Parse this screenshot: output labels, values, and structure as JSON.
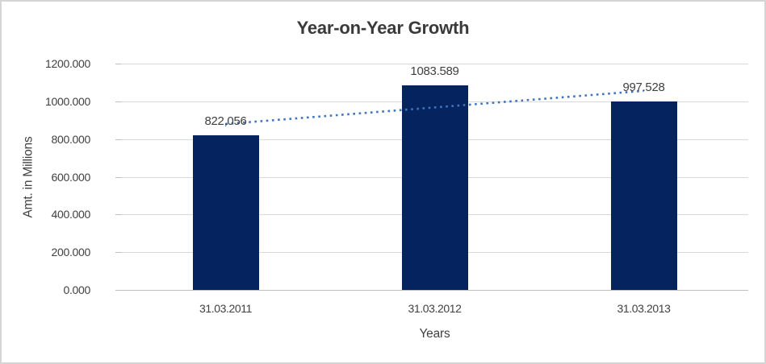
{
  "chart_data": {
    "type": "bar",
    "title": "Year-on-Year Growth",
    "xlabel": "Years",
    "ylabel": "Amt. in Millions",
    "categories": [
      "31.03.2011",
      "31.03.2012",
      "31.03.2013"
    ],
    "values": [
      822.056,
      1083.589,
      997.528
    ],
    "data_labels": [
      "822,056",
      "1083.589",
      "997.528"
    ],
    "ylim": [
      0,
      1200
    ],
    "ytick_step": 200,
    "ytick_labels": [
      "0.000",
      "200.000",
      "400.000",
      "600.000",
      "800.000",
      "1000.000",
      "1200.000"
    ],
    "grid": true,
    "legend": "none",
    "trendline": {
      "type": "linear",
      "style": "dotted"
    },
    "colors": {
      "bar": "#04235f",
      "trendline": "#3e74c0",
      "gridline": "#d9d9d9",
      "axis_line": "#bfbfbf",
      "text": "#404040",
      "title": "#3a3a3a",
      "background": "#ffffff",
      "border": "#d5d5d5"
    }
  }
}
